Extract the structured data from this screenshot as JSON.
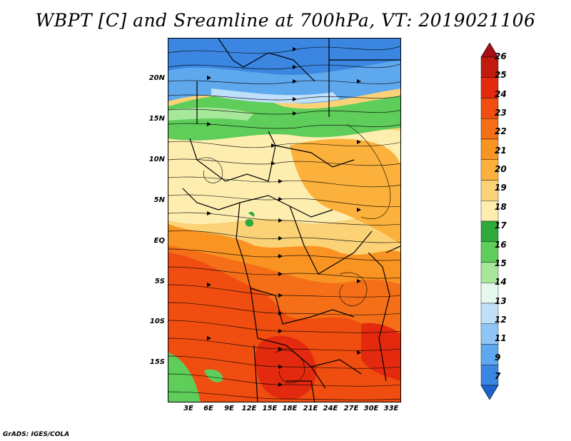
{
  "title": "WBPT [C] and Sreamline at 700hPa, VT: 2019021106",
  "footer": "GrADS: IGES/COLA",
  "lat_labels": [
    "20N",
    "15N",
    "10N",
    "5N",
    "EQ",
    "5S",
    "10S",
    "15S"
  ],
  "lon_labels": [
    "3E",
    "6E",
    "9E",
    "12E",
    "15E",
    "18E",
    "21E",
    "24E",
    "27E",
    "30E",
    "33E"
  ],
  "colorbar": {
    "levels": [
      "26",
      "25",
      "24",
      "23",
      "22",
      "21",
      "20",
      "19",
      "18",
      "17",
      "16",
      "15",
      "14",
      "13",
      "12",
      "11",
      "9",
      "7"
    ],
    "colors": [
      "#a50f15",
      "#c11b10",
      "#e32a0e",
      "#f04d10",
      "#f56f18",
      "#f99322",
      "#fbb13c",
      "#fcd277",
      "#fdeeb0",
      "#2eaa3a",
      "#5fcd5a",
      "#a6e79a",
      "#e6f7ee",
      "#bfe0fb",
      "#90c6f6",
      "#5ea8ee",
      "#3a86e0",
      "#1d62cf"
    ]
  },
  "colors": {
    "green": "#5fcd5a",
    "blue": "#5ea8ee",
    "light_yellow": "#fdeeb0",
    "orange": "#f56f18",
    "red": "#e32a0e"
  }
}
